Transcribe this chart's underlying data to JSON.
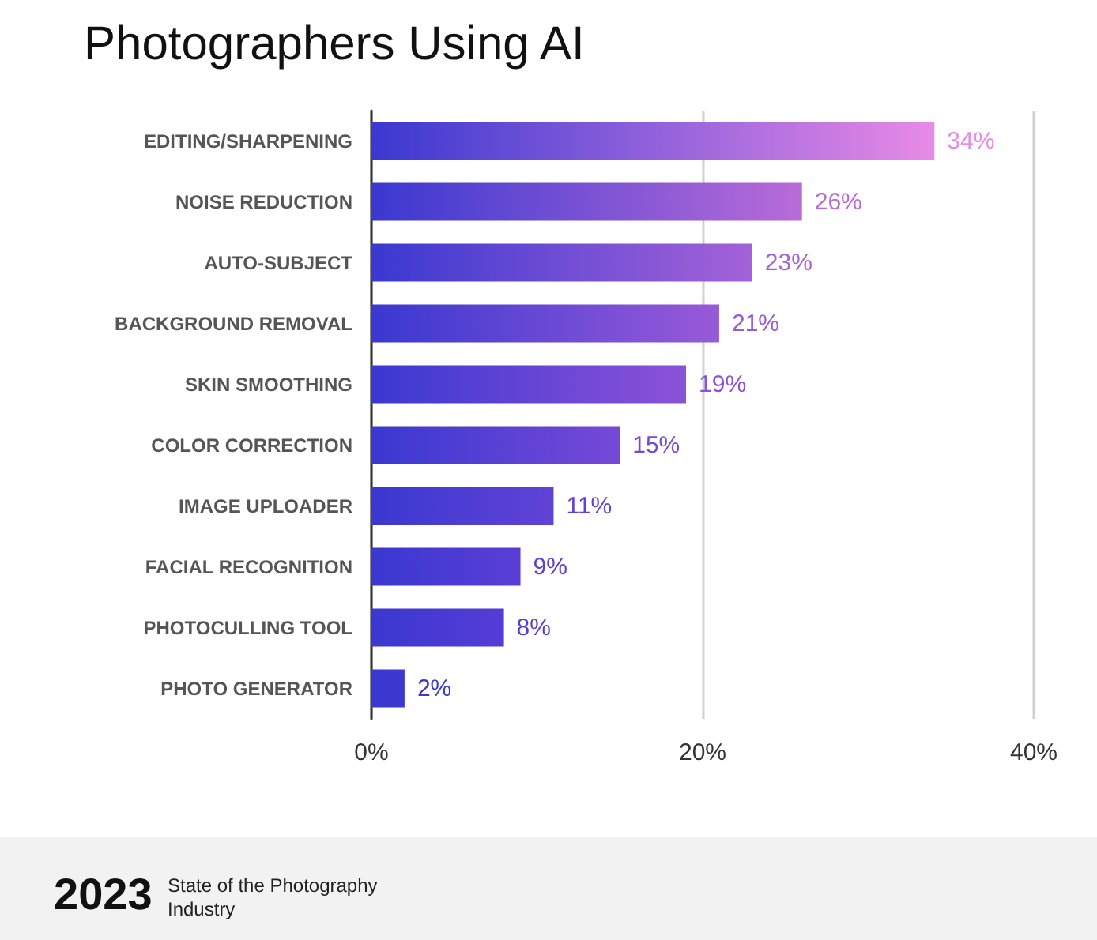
{
  "chart_data": {
    "type": "bar",
    "orientation": "horizontal",
    "title": "Photographers Using AI",
    "categories": [
      "EDITING/SHARPENING",
      "NOISE REDUCTION",
      "AUTO-SUBJECT",
      "BACKGROUND REMOVAL",
      "SKIN SMOOTHING",
      "COLOR CORRECTION",
      "IMAGE UPLOADER",
      "FACIAL RECOGNITION",
      "PHOTOCULLING TOOL",
      "PHOTO GENERATOR"
    ],
    "values": [
      34,
      26,
      23,
      21,
      19,
      15,
      11,
      9,
      8,
      2
    ],
    "colors": [
      "#e88ae6",
      "#b86cd8",
      "#a462d8",
      "#985ad8",
      "#8c52d8",
      "#7649d8",
      "#6142d6",
      "#5a3ed6",
      "#563cd6",
      "#3c38d0"
    ],
    "value_labels": [
      "34%",
      "26%",
      "23%",
      "21%",
      "19%",
      "15%",
      "11%",
      "9%",
      "8%",
      "2%"
    ],
    "xlim": [
      0,
      40
    ],
    "xticks": [
      {
        "value": 0,
        "label": "0%"
      },
      {
        "value": 20,
        "label": "20%"
      },
      {
        "value": 40,
        "label": "40%"
      }
    ],
    "grid": "x",
    "annotations": [
      "2023",
      "State of the Photography Industry"
    ]
  }
}
